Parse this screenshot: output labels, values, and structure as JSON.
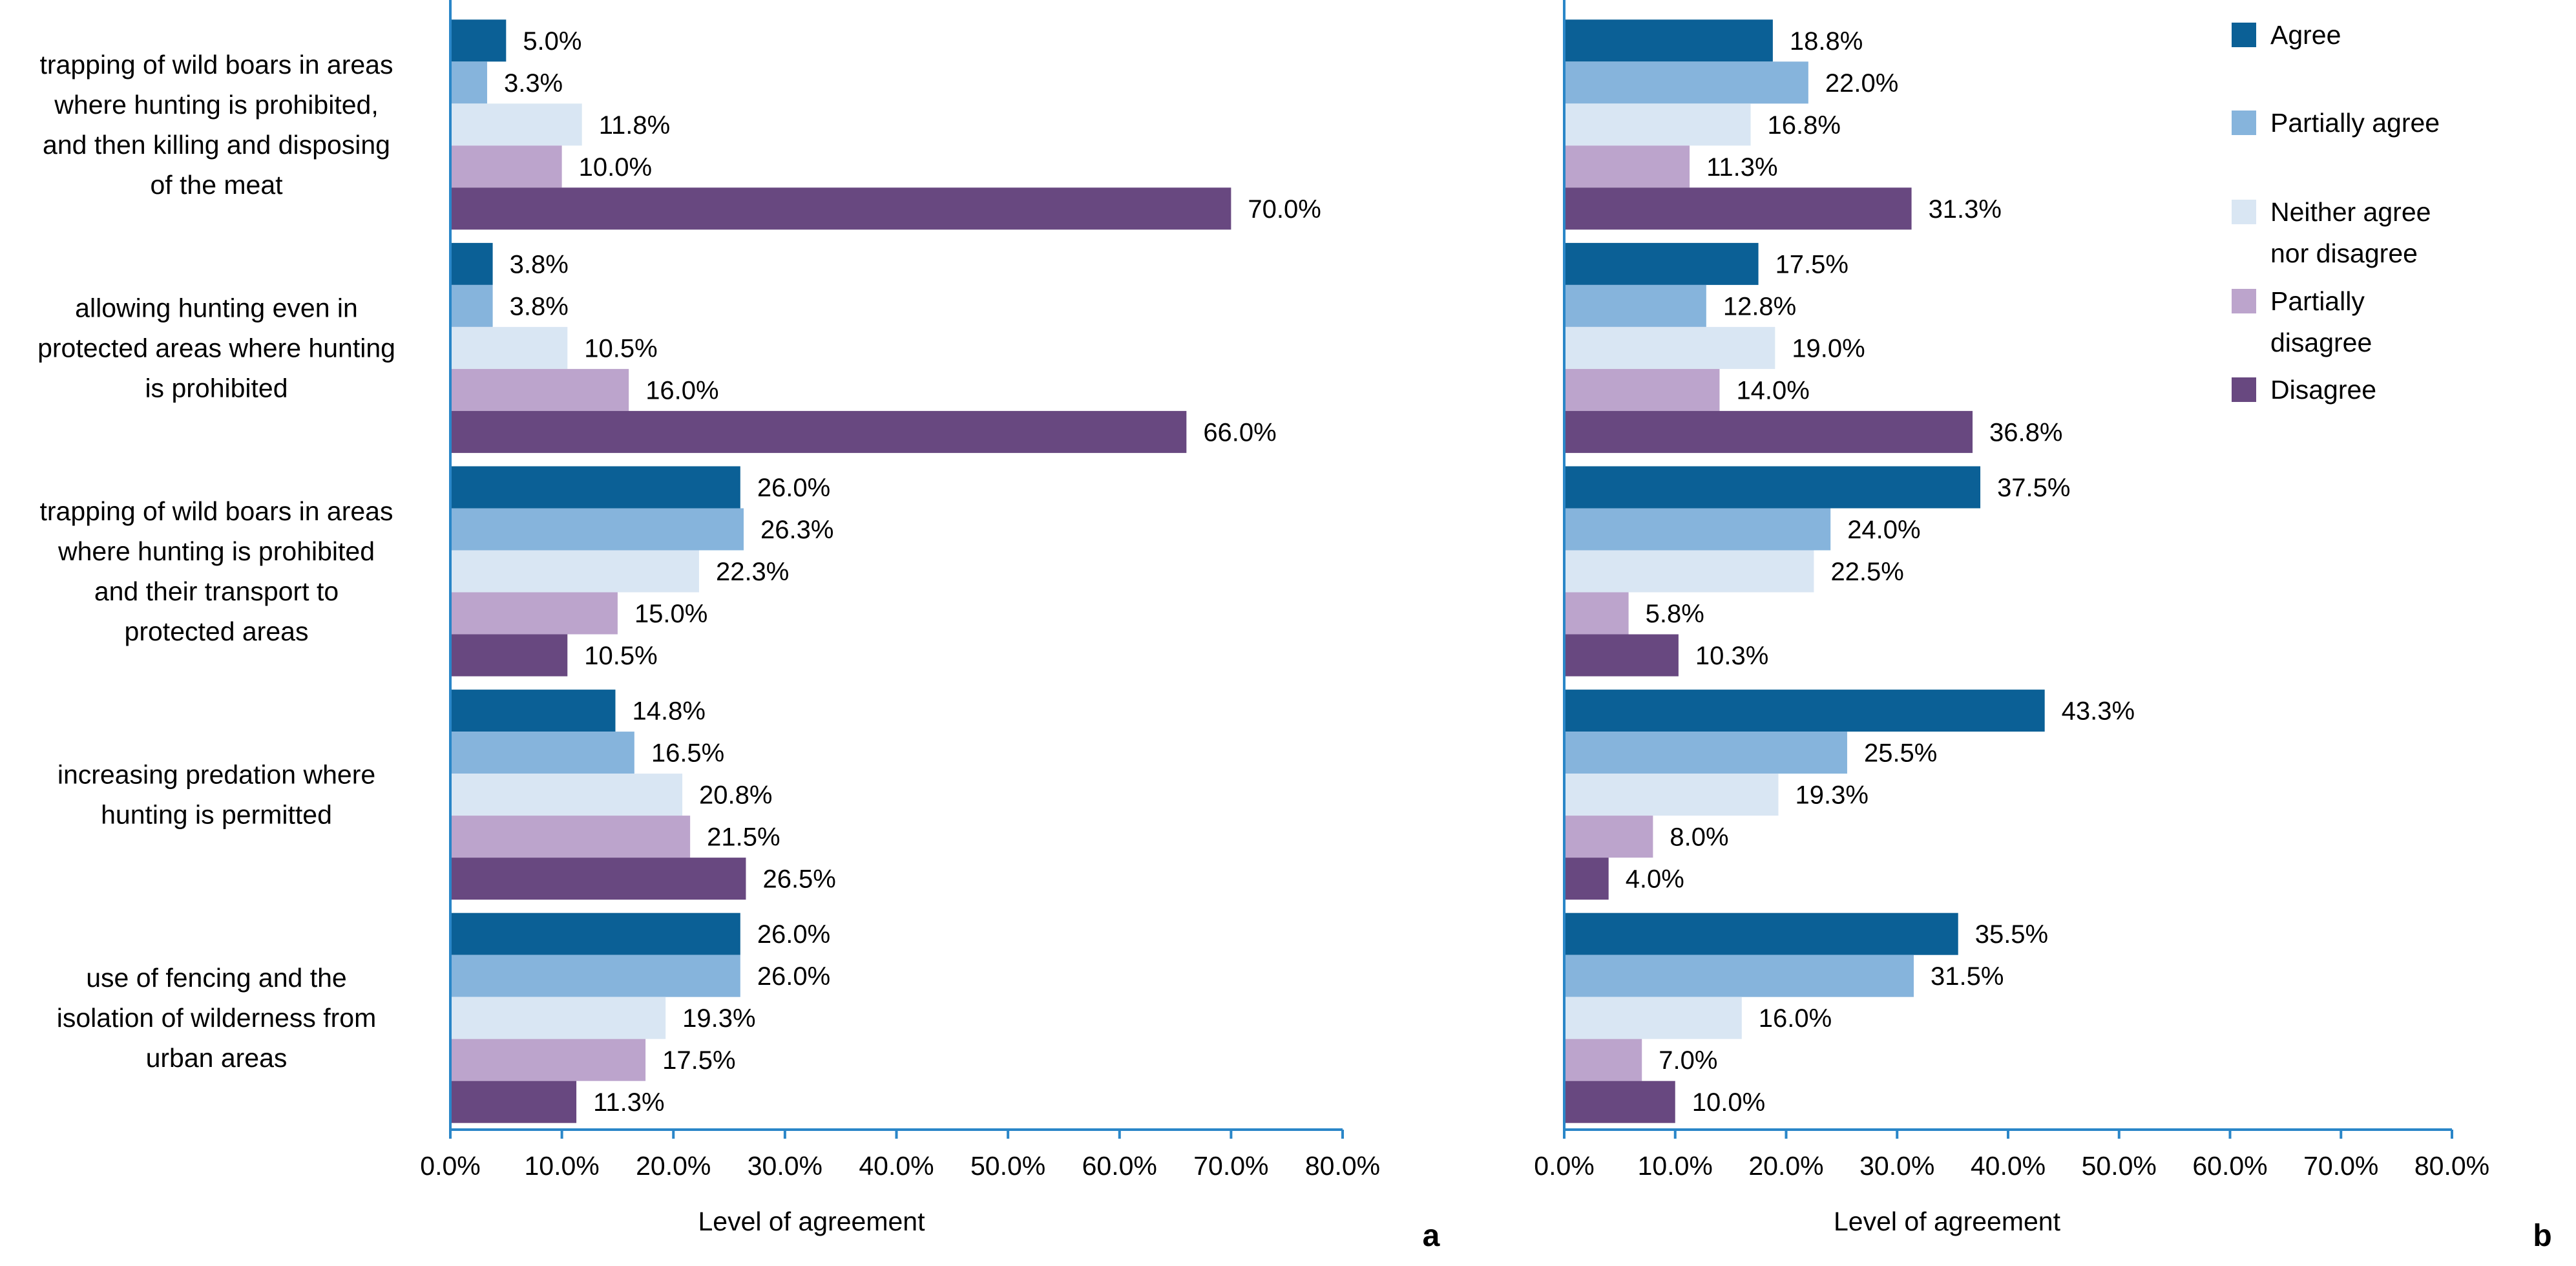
{
  "chart_data": [
    {
      "type": "bar",
      "orientation": "horizontal",
      "panel_label": "a",
      "xlabel": "Level  of agreement",
      "xlim": [
        0,
        80
      ],
      "x_ticks": [
        "0.0%",
        "10.0%",
        "20.0%",
        "30.0%",
        "40.0%",
        "50.0%",
        "60.0%",
        "70.0%",
        "80.0%"
      ],
      "categories": [
        [
          "trapping of wild boars in areas",
          "where hunting is prohibited,",
          "and then killing and disposing",
          "of the meat"
        ],
        [
          "allowing hunting even in",
          "protected areas where hunting",
          "is prohibited"
        ],
        [
          "trapping of wild boars in areas",
          "where hunting is prohibited",
          "and their transport to",
          "protected areas"
        ],
        [
          "increasing predation where",
          "hunting is permitted"
        ],
        [
          "use of fencing and the",
          "isolation of wilderness from",
          "urban areas"
        ]
      ],
      "series": [
        {
          "name": "Agree",
          "values": [
            5.0,
            3.8,
            26.0,
            14.8,
            26.0
          ],
          "labels": [
            "5.0%",
            "3.8%",
            "26.0%",
            "14.8%",
            "26.0%"
          ]
        },
        {
          "name": "Partially agree",
          "values": [
            3.3,
            3.8,
            26.3,
            16.5,
            26.0
          ],
          "labels": [
            "3.3%",
            "3.8%",
            "26.3%",
            "16.5%",
            "26.0%"
          ]
        },
        {
          "name": "Neither agree nor disagree",
          "values": [
            11.8,
            10.5,
            22.3,
            20.8,
            19.3
          ],
          "labels": [
            "11.8%",
            "10.5%",
            "22.3%",
            "20.8%",
            "19.3%"
          ]
        },
        {
          "name": "Partially disagree",
          "values": [
            10.0,
            16.0,
            15.0,
            21.5,
            17.5
          ],
          "labels": [
            "10.0%",
            "16.0%",
            "15.0%",
            "21.5%",
            "17.5%"
          ]
        },
        {
          "name": "Disagree",
          "values": [
            70.0,
            66.0,
            10.5,
            26.5,
            11.3
          ],
          "labels": [
            "70.0%",
            "66.0%",
            "10.5%",
            "26.5%",
            "11.3%"
          ]
        }
      ]
    },
    {
      "type": "bar",
      "orientation": "horizontal",
      "panel_label": "b",
      "xlabel": "Level  of agreement",
      "xlim": [
        0,
        80
      ],
      "x_ticks": [
        "0.0%",
        "10.0%",
        "20.0%",
        "30.0%",
        "40.0%",
        "50.0%",
        "60.0%",
        "70.0%",
        "80.0%"
      ],
      "series": [
        {
          "name": "Agree",
          "values": [
            18.8,
            17.5,
            37.5,
            43.3,
            35.5
          ],
          "labels": [
            "18.8%",
            "17.5%",
            "37.5%",
            "43.3%",
            "35.5%"
          ]
        },
        {
          "name": "Partially agree",
          "values": [
            22.0,
            12.8,
            24.0,
            25.5,
            31.5
          ],
          "labels": [
            "22.0%",
            "12.8%",
            "24.0%",
            "25.5%",
            "31.5%"
          ]
        },
        {
          "name": "Neither agree nor disagree",
          "values": [
            16.8,
            19.0,
            22.5,
            19.3,
            16.0
          ],
          "labels": [
            "16.8%",
            "19.0%",
            "22.5%",
            "19.3%",
            "16.0%"
          ]
        },
        {
          "name": "Partially disagree",
          "values": [
            11.3,
            14.0,
            5.8,
            8.0,
            7.0
          ],
          "labels": [
            "11.3%",
            "14.0%",
            "5.8%",
            "8.0%",
            "7.0%"
          ]
        },
        {
          "name": "Disagree",
          "values": [
            31.3,
            36.8,
            10.3,
            4.0,
            10.0
          ],
          "labels": [
            "31.3%",
            "36.8%",
            "10.3%",
            "4.0%",
            "10.0%"
          ]
        }
      ]
    }
  ],
  "legend": {
    "position": "top-right",
    "items": [
      {
        "lines": [
          "Agree"
        ],
        "color": "#0b6096"
      },
      {
        "lines": [
          "Partially agree"
        ],
        "color": "#86b4dc"
      },
      {
        "lines": [
          "Neither agree",
          "nor disagree"
        ],
        "color": "#d9e6f3"
      },
      {
        "lines": [
          "Partially",
          "disagree"
        ],
        "color": "#bca4cc"
      },
      {
        "lines": [
          "Disagree"
        ],
        "color": "#684880"
      }
    ]
  },
  "colors": [
    "#0b6096",
    "#86b4dc",
    "#d9e6f3",
    "#bca4cc",
    "#684880"
  ],
  "axis_color": "#2a86c8"
}
